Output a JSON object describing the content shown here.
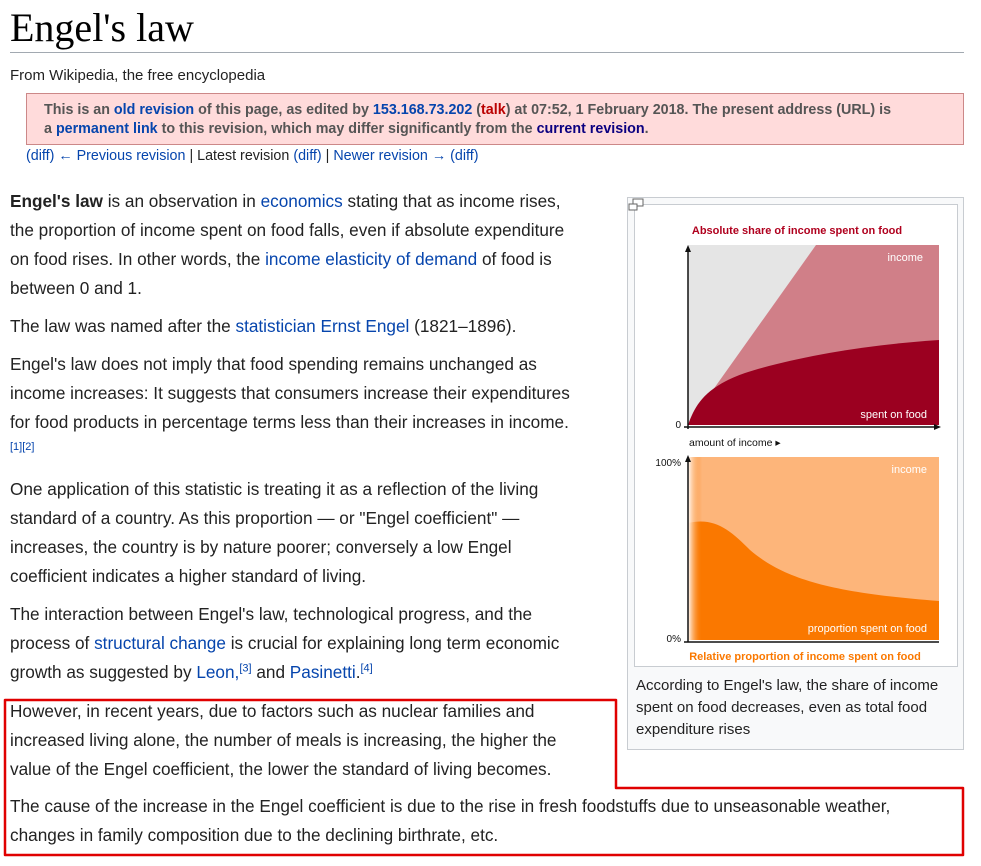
{
  "article": {
    "title": "Engel's law",
    "tagline": "From Wikipedia, the free encyclopedia"
  },
  "revision_notice": {
    "t1": "This is an ",
    "old_revision": "old revision",
    "t2": " of this page, as edited by ",
    "editor": "153.168.73.202",
    "t3": " (",
    "talk": "talk",
    "t4": ") at 07:52, 1 February 2018. The present address (URL) is",
    "t5": "a ",
    "permanent_link": "permanent link",
    "t6": " to this revision, which may differ significantly from the ",
    "current_revision": "current revision",
    "t7": "."
  },
  "revision_nav": {
    "diff1": "(diff)",
    "previous": "← Previous revision",
    "sep1": " | ",
    "latest": "Latest revision",
    "diff2": "(diff)",
    "sep2": " | ",
    "newer": "Newer revision →",
    "diff3": "(diff)"
  },
  "paragraphs": {
    "p1": {
      "bold": "Engel's law",
      "t1": " is an observation in ",
      "link1": "economics",
      "t2": " stating that as income rises,",
      "l2": "the proportion of income spent on food falls, even if absolute expenditure",
      "l3a": "on food rises. In other words, the ",
      "link2": "income elasticity of demand",
      "l3b": " of food is",
      "l4": "between 0 and 1."
    },
    "p2": {
      "t1": "The law was named after the ",
      "link1": "statistician Ernst Engel",
      "t2": " (1821–1896)."
    },
    "p3": {
      "l1": "Engel's law does not imply that food spending remains unchanged as",
      "l2": "income increases: It suggests that consumers increase their expenditures",
      "l3": "for food products in percentage terms less than their increases in income.",
      "refs": "[1][2]"
    },
    "p4": {
      "l1": "One application of this statistic is treating it as a reflection of the living",
      "l2": "standard of a country. As this proportion — or \"Engel coefficient\" —",
      "l3": "increases, the country is by nature poorer; conversely a low Engel",
      "l4": "coefficient indicates a higher standard of living."
    },
    "p5": {
      "l1": "The interaction between Engel's law, technological progress, and the",
      "l2a": "process of ",
      "link1": "structural change",
      "l2b": " is crucial for explaining long term economic",
      "l3a": "growth as suggested by ",
      "link2": "Leon,",
      "ref1": "[3]",
      "l3b": " and ",
      "link3": "Pasinetti",
      "l3c": ".",
      "ref2": "[4]"
    },
    "p6": {
      "l1": "However, in recent years, due to factors such as nuclear families and",
      "l2": "increased living alone, the number of meals is increasing, the higher the",
      "l3": "value of the Engel coefficient, the lower the standard of living becomes."
    },
    "p7": {
      "l1": "The cause of the increase in the Engel coefficient is due to the rise in fresh foodstuffs due to unseasonable weather,",
      "l2": "changes in family composition due to the declining birthrate, etc."
    }
  },
  "infobox": {
    "top_title": "Absolute share of income spent on food",
    "top_income": "income",
    "top_food": "spent on food",
    "top_zero": "0",
    "top_xlabel": "amount of income ▸",
    "bottom_100": "100%",
    "bottom_0": "0%",
    "bottom_income": "income",
    "bottom_food": "proportion spent on food",
    "bottom_title": "Relative proportion of income spent on food",
    "caption": "According to Engel's law, the share of income spent on food decreases, even as total food expenditure rises"
  },
  "colors": {
    "link": "#0645ad",
    "visited_link": "#0b0080",
    "red_link": "#ba0000",
    "revision_box": "#ffdbdb",
    "highlight": "#e00000",
    "chart_dark_red": "#9b0020",
    "chart_pink": "#d07f88",
    "chart_orange": "#fa7800",
    "chart_light_orange": "#fdb57a"
  }
}
